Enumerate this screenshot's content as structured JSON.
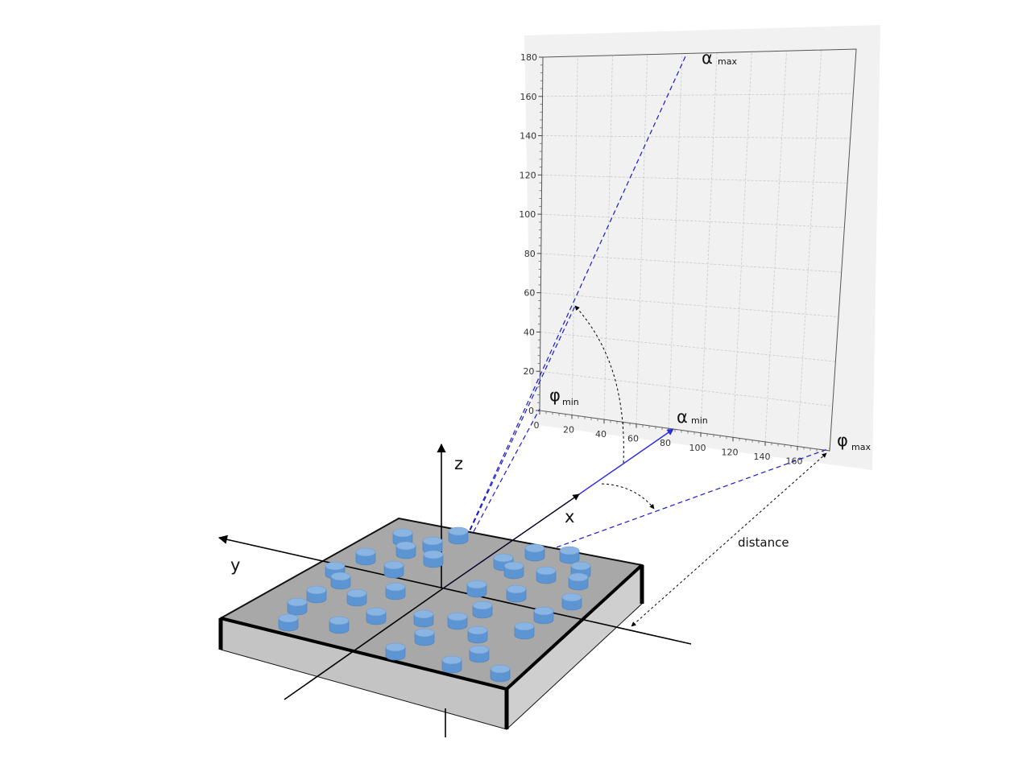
{
  "figure": {
    "labels": {
      "x_axis": "x",
      "y_axis": "y",
      "z_axis": "z",
      "distance": "distance",
      "alpha_symbol": "α",
      "phi_symbol": "φ",
      "sub_min": "min",
      "sub_max": "max"
    },
    "detector": {
      "vertical_ticks": [
        "0",
        "20",
        "40",
        "60",
        "80",
        "100",
        "120",
        "140",
        "160",
        "180"
      ],
      "horizontal_ticks": [
        "0",
        "20",
        "40",
        "60",
        "80",
        "100",
        "120",
        "140",
        "160"
      ]
    },
    "colors": {
      "plane_fill": "#f1f1f1",
      "grid": "#c8c8c8",
      "beam": "#1a1acc",
      "cylinder_top": "#8ab4e2",
      "cylinder_side": "#5d94d2",
      "substrate_top": "#a8a8a8",
      "substrate_side": "#c4c4c4"
    }
  }
}
